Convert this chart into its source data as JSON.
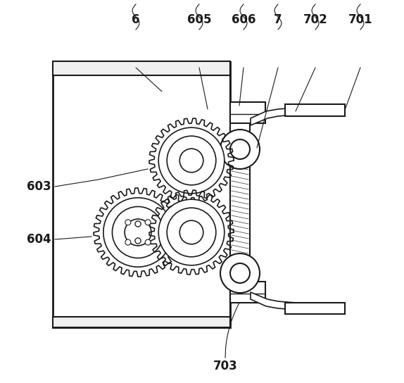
{
  "bg_color": "#ffffff",
  "line_color": "#1a1a1a",
  "lw_main": 1.8,
  "lw_thin": 0.9,
  "lw_leader": 0.8,
  "font_size": 11,
  "font_size_bold": 12
}
